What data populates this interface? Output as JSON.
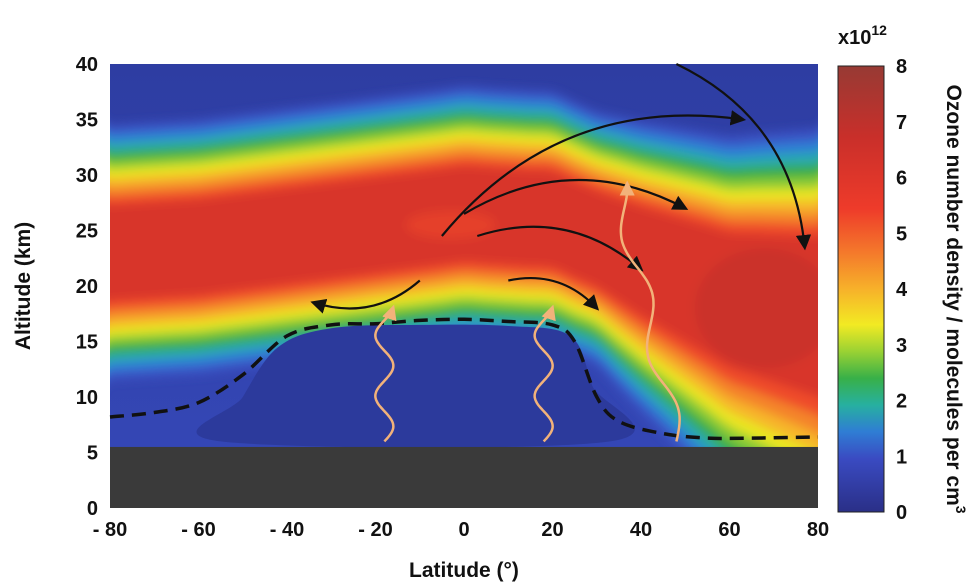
{
  "chart_data": {
    "type": "heatmap",
    "title": "",
    "xlabel": "Latitude (°)",
    "ylabel": "Altitude (km)",
    "xlim": [
      -80,
      80
    ],
    "ylim": [
      0,
      40
    ],
    "x_ticks": [
      -80,
      -60,
      -40,
      -20,
      0,
      20,
      40,
      60,
      80
    ],
    "x_tick_labels": [
      "- 80",
      "- 60",
      "- 40",
      "- 20",
      "0",
      "20",
      "40",
      "60",
      "80"
    ],
    "y_ticks": [
      0,
      5,
      10,
      15,
      20,
      25,
      30,
      35,
      40
    ],
    "y_tick_labels": [
      "0",
      "5",
      "10",
      "15",
      "20",
      "25",
      "30",
      "35",
      "40"
    ],
    "colorbar": {
      "label": "Ozone number density / molecules per cm",
      "label_superscript": "3",
      "multiplier_base": "x10",
      "multiplier_exponent": "12",
      "range": [
        0,
        8
      ],
      "ticks": [
        0,
        1,
        2,
        3,
        4,
        5,
        6,
        7,
        8
      ],
      "tick_labels": [
        "0",
        "1",
        "2",
        "3",
        "4",
        "5",
        "6",
        "7",
        "8"
      ]
    },
    "ground_top_km": 5.5,
    "tropopause": [
      {
        "lat": -80,
        "alt": 8.2
      },
      {
        "lat": -70,
        "alt": 8.6
      },
      {
        "lat": -60,
        "alt": 9.5
      },
      {
        "lat": -50,
        "alt": 12.0
      },
      {
        "lat": -40,
        "alt": 15.5
      },
      {
        "lat": -30,
        "alt": 16.5
      },
      {
        "lat": -20,
        "alt": 16.6
      },
      {
        "lat": -10,
        "alt": 16.9
      },
      {
        "lat": 0,
        "alt": 17.0
      },
      {
        "lat": 10,
        "alt": 16.8
      },
      {
        "lat": 20,
        "alt": 16.5
      },
      {
        "lat": 25,
        "alt": 15.0
      },
      {
        "lat": 30,
        "alt": 10.0
      },
      {
        "lat": 35,
        "alt": 7.8
      },
      {
        "lat": 45,
        "alt": 6.7
      },
      {
        "lat": 55,
        "alt": 6.3
      },
      {
        "lat": 65,
        "alt": 6.3
      },
      {
        "lat": 80,
        "alt": 6.4
      }
    ],
    "ozone_peak_altitude": [
      {
        "lat": -80,
        "alt": 22.5
      },
      {
        "lat": -60,
        "alt": 23.0
      },
      {
        "lat": -40,
        "alt": 24.0
      },
      {
        "lat": -20,
        "alt": 25.0
      },
      {
        "lat": 0,
        "alt": 26.0
      },
      {
        "lat": 20,
        "alt": 25.5
      },
      {
        "lat": 40,
        "alt": 22.0
      },
      {
        "lat": 60,
        "alt": 19.0
      },
      {
        "lat": 80,
        "alt": 18.0
      }
    ],
    "circulation_arrows": [
      {
        "kind": "black",
        "from": {
          "lat": -5,
          "alt": 24.5
        },
        "to": {
          "lat": 63,
          "alt": 35
        }
      },
      {
        "kind": "black",
        "from": {
          "lat": 0,
          "alt": 26.5
        },
        "to": {
          "lat": 50,
          "alt": 27.0
        }
      },
      {
        "kind": "black",
        "from": {
          "lat": 3,
          "alt": 24.5
        },
        "to": {
          "lat": 40,
          "alt": 21.5
        }
      },
      {
        "kind": "black",
        "from": {
          "lat": -10,
          "alt": 20.5
        },
        "to": {
          "lat": -34,
          "alt": 18.5
        }
      },
      {
        "kind": "black",
        "from": {
          "lat": 10,
          "alt": 20.5
        },
        "to": {
          "lat": 30,
          "alt": 18.0
        }
      },
      {
        "kind": "black",
        "from": {
          "lat": 48,
          "alt": 40.0
        },
        "to": {
          "lat": 77,
          "alt": 23.5
        }
      },
      {
        "kind": "wave",
        "from": {
          "lat": -18,
          "alt": 6
        },
        "to": {
          "lat": -18,
          "alt": 18
        }
      },
      {
        "kind": "wave",
        "from": {
          "lat": 18,
          "alt": 6
        },
        "to": {
          "lat": 18,
          "alt": 18
        }
      },
      {
        "kind": "wave",
        "from": {
          "lat": 48,
          "alt": 6
        },
        "to": {
          "lat": 35,
          "alt": 29
        }
      }
    ]
  }
}
